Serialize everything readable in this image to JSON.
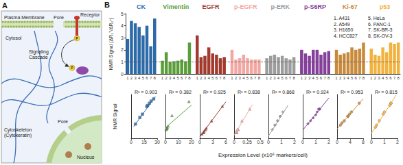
{
  "diagram": {
    "label": "A",
    "plasma_membrane": "Plasma Membrane",
    "pore_top": "Pore",
    "receptor": "Receptor",
    "cytosol": "Cytosol",
    "signaling_cascade": [
      "Signaling",
      "Cascade"
    ],
    "phospho": "P",
    "cytoskeleton": [
      "Cytoskeleton",
      "(Cytokeratin)"
    ],
    "pore_nucleus": "Pore",
    "nucleus": "Nucleus"
  },
  "chart_data": [
    {
      "type": "bar",
      "panel_label": "B",
      "y_label": "NMR Signal (ΔR₂ᵀ/ΔR₂ᶜ)",
      "categories": [
        "1",
        "2",
        "3",
        "4",
        "5",
        "6",
        "7",
        "8"
      ],
      "series": [
        {
          "name": "CK",
          "color": "#2d6aa8",
          "values": [
            2.9,
            4.4,
            4.2,
            3.9,
            3.2,
            4.0,
            2.3,
            4.6
          ]
        },
        {
          "name": "Vimentin",
          "color": "#5a9e3a",
          "values": [
            1.1,
            1.8,
            1.0,
            1.05,
            1.1,
            1.2,
            1.05,
            2.6
          ]
        },
        {
          "name": "EGFR",
          "color": "#a33a2e",
          "values": [
            3.2,
            1.4,
            1.5,
            2.2,
            1.7,
            1.6,
            1.3,
            1.4
          ]
        },
        {
          "name": "p-EGFR",
          "color": "#f2a7a3",
          "values": [
            2.0,
            1.2,
            1.3,
            1.6,
            1.3,
            1.2,
            1.2,
            1.2
          ]
        },
        {
          "name": "p-ERK",
          "color": "#9c9c9c",
          "values": [
            1.3,
            1.5,
            1.6,
            1.4,
            1.5,
            1.3,
            1.2,
            1.4
          ]
        },
        {
          "name": "p-S6RP",
          "color": "#84409a",
          "values": [
            2.0,
            1.7,
            1.5,
            2.0,
            2.0,
            1.6,
            1.8,
            1.9
          ]
        },
        {
          "name": "Ki-67",
          "color": "#c8893a",
          "values": [
            2.0,
            1.6,
            1.7,
            1.8,
            2.2,
            2.0,
            2.1,
            2.6
          ]
        },
        {
          "name": "p53",
          "color": "#f2b23e",
          "values": [
            2.1,
            1.6,
            1.5,
            2.2,
            1.8,
            2.6,
            2.5,
            2.6
          ]
        }
      ],
      "ylim": [
        0,
        5
      ],
      "yticks": [
        0,
        1,
        2,
        3,
        4,
        5
      ],
      "reference_line": 1,
      "annotations": [
        "1. A431",
        "2. A549",
        "3. H1650",
        "4. HCC827",
        "5. HeLa",
        "6. PANC-1",
        "7. SK-BR-3",
        "8. SK-OV-3"
      ],
      "grid": false
    },
    {
      "type": "scatter",
      "y_label": "NMR Signal",
      "x_label": "Expression Level (x10⁶ markers/cell)",
      "tick_labels": "x",
      "panels": [
        {
          "title": "R² = 0.903",
          "color": "#2d6aa8",
          "marker": "square",
          "x": [
            10,
            23,
            21,
            18,
            13,
            19,
            5,
            26
          ],
          "values": [
            2.9,
            4.4,
            4.2,
            3.9,
            3.2,
            4.0,
            2.3,
            4.6
          ],
          "fit": {
            "x": [
              3,
              28
            ],
            "y": [
              2.08,
              4.82
            ]
          },
          "xlim": [
            0,
            30
          ],
          "xticks": [
            0,
            15,
            30
          ],
          "ylim": [
            1,
            5
          ]
        },
        {
          "title": "R² = 0.382",
          "color": "#5a9e3a",
          "marker": "triangle",
          "x": [
            1,
            5,
            0.5,
            0.8,
            1.5,
            2,
            0.7,
            18
          ],
          "values": [
            1.1,
            1.8,
            1.0,
            1.05,
            1.1,
            1.2,
            1.05,
            2.6
          ],
          "fit": {
            "x": [
              0,
              20
            ],
            "y": [
              1.1,
              2.4
            ]
          },
          "xlim": [
            0,
            20
          ],
          "xticks": [
            0,
            10,
            20
          ],
          "ylim": [
            0.5,
            3
          ]
        },
        {
          "title": "R² = 0.925",
          "color": "#a33a2e",
          "marker": "triangle",
          "x": [
            5.2,
            0.8,
            1.0,
            2.7,
            1.5,
            1.3,
            0.5,
            0.9
          ],
          "values": [
            3.2,
            1.4,
            1.5,
            2.2,
            1.7,
            1.6,
            1.3,
            1.4
          ],
          "fit": {
            "x": [
              0,
              6
            ],
            "y": [
              1.1,
              3.5
            ]
          },
          "xlim": [
            0,
            6
          ],
          "xticks": [
            0,
            3,
            6
          ],
          "ylim": [
            1,
            4
          ]
        },
        {
          "title": "R² = 0.838",
          "color": "#f2a7a3",
          "marker": "triangle",
          "x": [
            0.3,
            0.04,
            0.06,
            0.15,
            0.08,
            0.05,
            0.03,
            0.05
          ],
          "values": [
            2.0,
            1.2,
            1.3,
            1.6,
            1.3,
            1.2,
            1.2,
            1.2
          ],
          "fit": {
            "x": [
              0,
              0.35
            ],
            "y": [
              1.1,
              2.15
            ]
          },
          "xlim": [
            0,
            0.5
          ],
          "xticks": [
            0,
            0.25,
            0.5
          ],
          "ylim": [
            1,
            2.5
          ]
        },
        {
          "title": "R² = 0.868",
          "color": "#9c9c9c",
          "marker": "diamond",
          "x": [
            0.5,
            0.9,
            1.1,
            0.7,
            0.9,
            0.5,
            0.3,
            0.7
          ],
          "values": [
            1.3,
            1.5,
            1.6,
            1.4,
            1.5,
            1.3,
            1.2,
            1.4
          ],
          "fit": {
            "x": [
              0,
              1.5
            ],
            "y": [
              1.05,
              1.75
            ]
          },
          "xlim": [
            0,
            2
          ],
          "xticks": [
            0,
            1,
            2
          ],
          "ylim": [
            1,
            2
          ]
        },
        {
          "title": "R² = 0.924",
          "color": "#84409a",
          "marker": "diamond",
          "x": [
            1.3,
            0.8,
            0.4,
            1.3,
            1.2,
            0.6,
            1.0,
            1.1
          ],
          "values": [
            2.0,
            1.7,
            1.5,
            2.0,
            2.0,
            1.6,
            1.8,
            1.9
          ],
          "fit": {
            "x": [
              0,
              2
            ],
            "y": [
              1.28,
              2.38
            ]
          },
          "xlim": [
            0,
            2
          ],
          "xticks": [
            0,
            1,
            2
          ],
          "ylim": [
            1,
            2.5
          ]
        },
        {
          "title": "R² = 0.953",
          "color": "#c8893a",
          "marker": "circle",
          "x": [
            3.3,
            1.0,
            1.5,
            2.2,
            4.4,
            3.3,
            3.8,
            6.8
          ],
          "values": [
            2.0,
            1.6,
            1.7,
            1.8,
            2.2,
            2.0,
            2.1,
            2.6
          ],
          "fit": {
            "x": [
              0,
              8
            ],
            "y": [
              1.43,
              2.8
            ]
          },
          "xlim": [
            0,
            8
          ],
          "xticks": [
            0,
            4,
            8
          ],
          "ylim": [
            1,
            3
          ]
        },
        {
          "title": "R² = 0.815",
          "color": "#f2b23e",
          "marker": "circle",
          "x": [
            0.9,
            0.4,
            0.3,
            1.0,
            0.6,
            1.5,
            1.4,
            1.5
          ],
          "values": [
            2.1,
            1.6,
            1.5,
            2.2,
            1.8,
            2.6,
            2.5,
            2.6
          ],
          "fit": {
            "x": [
              0,
              1.9
            ],
            "y": [
              1.22,
              2.97
            ]
          },
          "xlim": [
            0,
            2
          ],
          "xticks": [
            0,
            1,
            2
          ],
          "ylim": [
            1,
            3
          ]
        }
      ]
    }
  ]
}
